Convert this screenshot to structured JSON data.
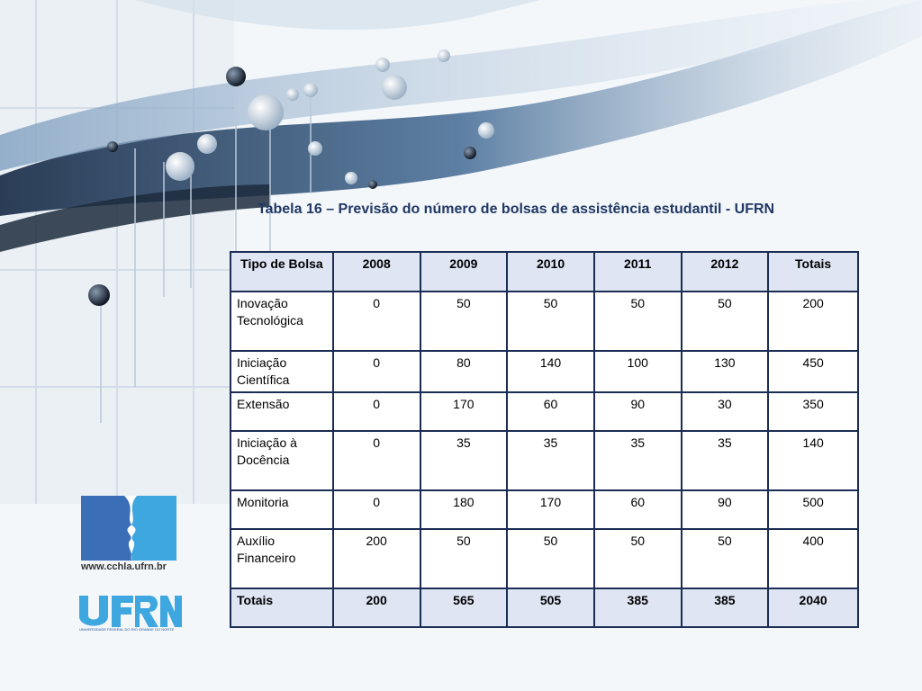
{
  "slide": {
    "title": "Tabela 16 – Previsão do número de bolsas de assistência estudantil - UFRN"
  },
  "table": {
    "headers": [
      "Tipo de Bolsa",
      "2008",
      "2009",
      "2010",
      "2011",
      "2012",
      "Totais"
    ],
    "rows": [
      {
        "label": "Inovação Tecnológica",
        "values": [
          "0",
          "50",
          "50",
          "50",
          "50",
          "200"
        ]
      },
      {
        "label": "Iniciação Científica",
        "values": [
          "0",
          "80",
          "140",
          "100",
          "130",
          "450"
        ]
      },
      {
        "label": "Extensão",
        "values": [
          "0",
          "170",
          "60",
          "90",
          "30",
          "350"
        ]
      },
      {
        "label": "Iniciação à Docência",
        "values": [
          "0",
          "35",
          "35",
          "35",
          "35",
          "140"
        ]
      },
      {
        "label": "Monitoria",
        "values": [
          "0",
          "180",
          "170",
          "60",
          "90",
          "500"
        ]
      },
      {
        "label": "Auxílio Financeiro",
        "values": [
          "200",
          "50",
          "50",
          "50",
          "50",
          "400"
        ]
      }
    ],
    "totals": {
      "label": "Totais",
      "values": [
        "200",
        "565",
        "505",
        "385",
        "385",
        "2040"
      ]
    }
  },
  "logos": {
    "cchla_url": "www.cchla.ufrn.br",
    "ufrn_text": "UFRN",
    "ufrn_subtitle": "UNIVERSIDADE FEDERAL DO RIO GRANDE DO NORTE"
  },
  "colors": {
    "title": "#1f3864",
    "table_border": "#1c2d55",
    "header_fill": "#dfe5f3",
    "logo_blue": "#3a6fb8",
    "logo_light": "#3fa7e0"
  }
}
